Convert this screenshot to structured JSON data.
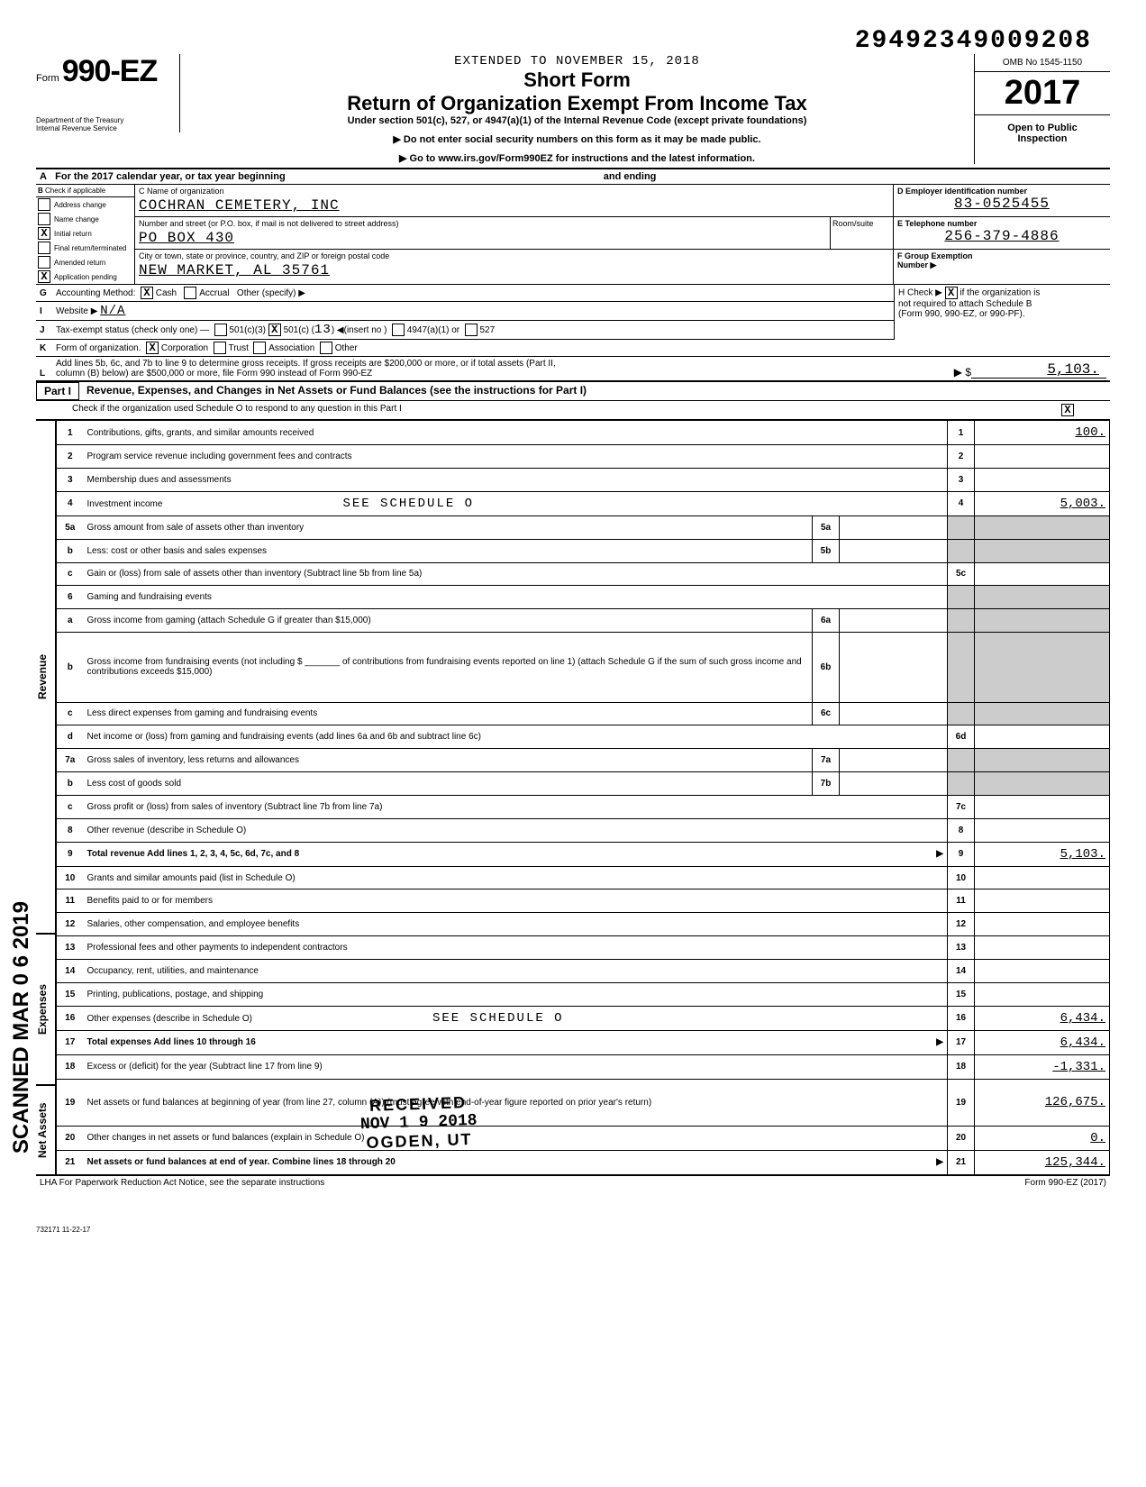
{
  "header": {
    "top_id": "29492349009208",
    "form_prefix": "Form",
    "form_number": "990-EZ",
    "extended": "EXTENDED TO NOVEMBER 15, 2018",
    "short_form": "Short Form",
    "main_title": "Return of Organization Exempt From Income Tax",
    "subtitle": "Under section 501(c), 527, or 4947(a)(1) of the Internal Revenue Code (except private foundations)",
    "instr1": "▶ Do not enter social security numbers on this form as it may be made public.",
    "instr2": "▶ Go to www.irs.gov/Form990EZ for instructions and the latest information.",
    "dept1": "Department of the Treasury",
    "dept2": "Internal Revenue Service",
    "omb": "OMB No  1545-1150",
    "year": "2017",
    "open1": "Open to Public",
    "open2": "Inspection"
  },
  "rowA": {
    "letter": "A",
    "text": "For the 2017 calendar year, or tax year beginning",
    "ending": "and ending"
  },
  "sectionB": {
    "letter": "B",
    "header": "Check if applicable",
    "items": [
      {
        "label": "Address change",
        "checked": ""
      },
      {
        "label": "Name change",
        "checked": ""
      },
      {
        "label": "Initial return",
        "checked": "X"
      },
      {
        "label": "Final return/terminated",
        "checked": ""
      },
      {
        "label": "Amended return",
        "checked": ""
      },
      {
        "label": "Application pending",
        "checked": "X"
      }
    ]
  },
  "sectionC": {
    "name_label": "C Name of organization",
    "name": "COCHRAN CEMETERY, INC",
    "addr_label": "Number and street (or P.O. box, if mail is not delivered to street address)",
    "addr": "PO BOX 430",
    "room_label": "Room/suite",
    "city_label": "City or town, state or province, country, and ZIP or foreign postal code",
    "city": "NEW MARKET, AL  35761"
  },
  "sectionD": {
    "d_label": "D Employer identification number",
    "d_value": "83-0525455",
    "e_label": "E Telephone number",
    "e_value": "256-379-4886",
    "f_label": "F Group Exemption",
    "f_label2": "Number ▶"
  },
  "rowG": {
    "letter": "G",
    "label": "Accounting Method:",
    "cash": "Cash",
    "cash_checked": "X",
    "accrual": "Accrual",
    "other": "Other (specify) ▶"
  },
  "rowH": {
    "label": "H Check ▶",
    "checked": "X",
    "text1": "if the organization is",
    "text2": "not required to attach Schedule B",
    "text3": "(Form 990, 990-EZ, or 990-PF)."
  },
  "rowI": {
    "letter": "I",
    "label": "Website  ▶",
    "value": "N/A"
  },
  "rowJ": {
    "letter": "J",
    "label": "Tax-exempt status (check only one) —",
    "opt1": "501(c)(3)",
    "opt2": "501(c) (",
    "opt2_val": "13",
    "opt2_checked": "X",
    "opt2_suffix": ") ◀(insert no )",
    "opt3": "4947(a)(1) or",
    "opt4": "527"
  },
  "rowK": {
    "letter": "K",
    "label": "Form of organization.",
    "corp": "Corporation",
    "corp_checked": "X",
    "trust": "Trust",
    "assoc": "Association",
    "other": "Other"
  },
  "rowL": {
    "letter": "L",
    "text1": "Add lines 5b, 6c, and 7b to line 9 to determine gross receipts. If gross receipts are $200,000 or more, or if total assets (Part II,",
    "text2": "column (B) below) are $500,000 or more, file Form 990 instead of Form 990-EZ",
    "arrow": "▶  $",
    "amount": "5,103."
  },
  "part1": {
    "label": "Part I",
    "title": "Revenue, Expenses, and Changes in Net Assets or Fund Balances (see the instructions for Part I)",
    "check_text": "Check if the organization used Schedule O to respond to any question in this Part I",
    "check_val": "X"
  },
  "sections": {
    "revenue": "Revenue",
    "expenses": "Expenses",
    "netassets": "Net Assets"
  },
  "lines": [
    {
      "num": "1",
      "desc": "Contributions, gifts, grants, and similar amounts received",
      "rnum": "1",
      "amt": "100."
    },
    {
      "num": "2",
      "desc": "Program service revenue including government fees and contracts",
      "rnum": "2",
      "amt": ""
    },
    {
      "num": "3",
      "desc": "Membership dues and assessments",
      "rnum": "3",
      "amt": ""
    },
    {
      "num": "4",
      "desc": "Investment income",
      "extra": "SEE SCHEDULE O",
      "rnum": "4",
      "amt": "5,003."
    },
    {
      "num": "5a",
      "desc": "Gross amount from sale of assets other than inventory",
      "sub": "5a",
      "subval": ""
    },
    {
      "num": "b",
      "desc": "Less: cost or other basis and sales expenses",
      "sub": "5b",
      "subval": ""
    },
    {
      "num": "c",
      "desc": "Gain or (loss) from sale of assets other than inventory (Subtract line 5b from line 5a)",
      "rnum": "5c",
      "amt": ""
    },
    {
      "num": "6",
      "desc": "Gaming and fundraising events"
    },
    {
      "num": "a",
      "desc": "Gross income from gaming (attach Schedule G if greater than $15,000)",
      "sub": "6a",
      "subval": ""
    },
    {
      "num": "b",
      "desc": "Gross income from fundraising events (not including $ _______ of contributions from fundraising events reported on line 1) (attach Schedule G if the sum of such gross income and contributions exceeds $15,000)",
      "sub": "6b",
      "subval": ""
    },
    {
      "num": "c",
      "desc": "Less  direct expenses from gaming and fundraising events",
      "sub": "6c",
      "subval": ""
    },
    {
      "num": "d",
      "desc": "Net income or (loss) from gaming and fundraising events (add lines 6a and 6b and subtract line 6c)",
      "rnum": "6d",
      "amt": ""
    },
    {
      "num": "7a",
      "desc": "Gross sales of inventory, less returns and allowances",
      "sub": "7a",
      "subval": ""
    },
    {
      "num": "b",
      "desc": "Less  cost of goods sold",
      "sub": "7b",
      "subval": ""
    },
    {
      "num": "c",
      "desc": "Gross profit or (loss) from sales of inventory (Subtract line 7b from line 7a)",
      "rnum": "7c",
      "amt": ""
    },
    {
      "num": "8",
      "desc": "Other revenue (describe in Schedule O)",
      "rnum": "8",
      "amt": ""
    },
    {
      "num": "9",
      "desc": "Total revenue  Add lines 1, 2, 3, 4, 5c, 6d, 7c, and 8",
      "arrow": "▶",
      "rnum": "9",
      "amt": "5,103."
    },
    {
      "num": "10",
      "desc": "Grants and similar amounts paid (list in Schedule O)",
      "rnum": "10",
      "amt": ""
    },
    {
      "num": "11",
      "desc": "Benefits paid to or for members",
      "rnum": "11",
      "amt": ""
    },
    {
      "num": "12",
      "desc": "Salaries, other compensation, and employee benefits",
      "rnum": "12",
      "amt": ""
    },
    {
      "num": "13",
      "desc": "Professional fees and other payments to independent contractors",
      "rnum": "13",
      "amt": ""
    },
    {
      "num": "14",
      "desc": "Occupancy, rent, utilities, and maintenance",
      "rnum": "14",
      "amt": ""
    },
    {
      "num": "15",
      "desc": "Printing, publications, postage, and shipping",
      "rnum": "15",
      "amt": ""
    },
    {
      "num": "16",
      "desc": "Other expenses (describe in Schedule O)",
      "extra": "SEE SCHEDULE O",
      "rnum": "16",
      "amt": "6,434."
    },
    {
      "num": "17",
      "desc": "Total expenses  Add lines 10 through 16",
      "arrow": "▶",
      "rnum": "17",
      "amt": "6,434."
    },
    {
      "num": "18",
      "desc": "Excess or (deficit) for the year (Subtract line 17 from line 9)",
      "rnum": "18",
      "amt": "-1,331."
    },
    {
      "num": "19",
      "desc": "Net assets or fund balances at beginning of year (from line 27, column (A)) (must agree with end-of-year figure reported on prior year's return)",
      "rnum": "19",
      "amt": "126,675."
    },
    {
      "num": "20",
      "desc": "Other changes in net assets or fund balances (explain in Schedule O)",
      "rnum": "20",
      "amt": "0."
    },
    {
      "num": "21",
      "desc": "Net assets or fund balances at end of year. Combine lines 18 through 20",
      "arrow": "▶",
      "rnum": "21",
      "amt": "125,344."
    }
  ],
  "footer": {
    "lha": "LHA  For Paperwork Reduction Act Notice, see the separate instructions",
    "form": "Form 990-EZ (2017)",
    "code": "732171  11-22-17"
  },
  "stamps": {
    "scanned": "SCANNED MAR 0 6 2019",
    "received1": "RECEIVED",
    "received2": "NOV 1 9 2018",
    "received3": "OGDEN, UT"
  }
}
